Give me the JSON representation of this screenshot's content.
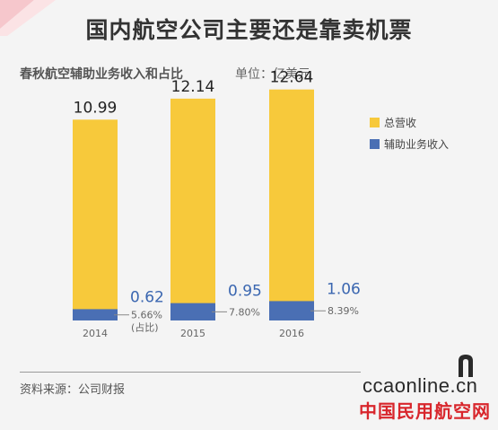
{
  "header": {
    "title": "国内航空公司主要还是靠卖机票"
  },
  "chart_data": {
    "type": "bar",
    "title": "春秋航空辅助业务收入和占比",
    "unit": "单位：亿美元",
    "categories": [
      "2014",
      "2015",
      "2016"
    ],
    "series": [
      {
        "name": "总营收",
        "values": [
          10.99,
          12.14,
          12.64
        ],
        "color": "#f7c93b"
      },
      {
        "name": "辅助业务收入",
        "values": [
          0.62,
          0.95,
          1.06
        ],
        "color": "#4a6fb4"
      }
    ],
    "total_labels": [
      "10.99",
      "12.14",
      "12.64"
    ],
    "aux_labels": [
      "0.62",
      "0.95",
      "1.06"
    ],
    "share_labels": [
      "5.66%",
      "7.80%",
      "8.39%"
    ],
    "share_note": "(占比)",
    "ylim": [
      0,
      14
    ],
    "grid": false,
    "legend": "top-right"
  },
  "footer": {
    "source": "资料来源：公司财报"
  },
  "watermark": {
    "line1": "ccaonline.cn",
    "line2": "中国民用航空网"
  },
  "colors": {
    "total": "#f7c93b",
    "aux": "#4a6fb4",
    "aux_label": "#3a66b0",
    "accent": "#f0a0a6"
  }
}
